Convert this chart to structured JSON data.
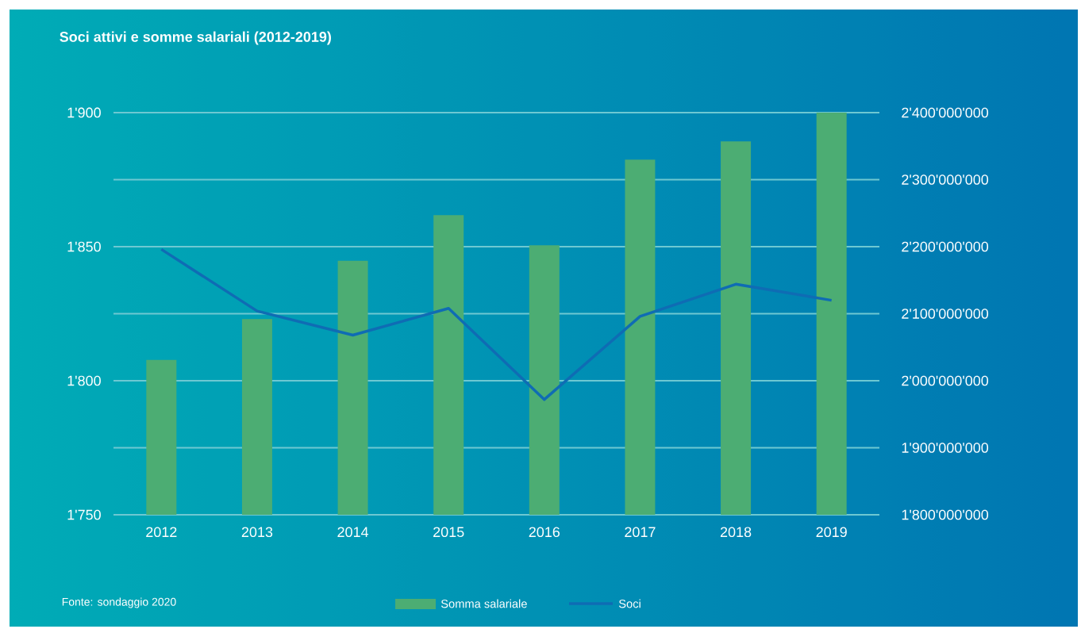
{
  "chart_data": {
    "type": "bar",
    "title": "Soci attivi e somme salariali (2012-2019)",
    "categories": [
      "2012",
      "2013",
      "2014",
      "2015",
      "2016",
      "2017",
      "2018",
      "2019"
    ],
    "series": [
      {
        "name": "Somma salariale",
        "axis": "y2",
        "color": "#4cad73",
        "values": [
          2031000000,
          2092000000,
          2179000000,
          2247000000,
          2202000000,
          2330000000,
          2357000000,
          2400000000
        ]
      },
      {
        "name": "Soci",
        "type": "line",
        "color": "#0f6cb4",
        "values": [
          1849,
          1826,
          1817,
          1827,
          1793,
          1824,
          1836,
          1830
        ]
      }
    ],
    "ylim": [
      1750,
      1900
    ],
    "yticks": [
      {
        "value": 1750,
        "label": "1'750"
      },
      {
        "value": 1800,
        "label": "1'800"
      },
      {
        "value": 1850,
        "label": "1'850"
      },
      {
        "value": 1900,
        "label": "1'900"
      }
    ],
    "y2lim": [
      1800000000,
      2400000000
    ],
    "y2ticks": [
      {
        "value": 1800000000,
        "label": "1'800'000'000"
      },
      {
        "value": 1900000000,
        "label": "1'900'000'000"
      },
      {
        "value": 2000000000,
        "label": "2'000'000'000"
      },
      {
        "value": 2100000000,
        "label": "2'100'000'000"
      },
      {
        "value": 2200000000,
        "label": "2'200'000'000"
      },
      {
        "value": 2300000000,
        "label": "2'300'000'000"
      },
      {
        "value": 2400000000,
        "label": "2'400'000'000"
      }
    ],
    "grid": "y",
    "legend": "bottom",
    "annotations": [
      "Fonte: sondaggio 2020"
    ]
  }
}
